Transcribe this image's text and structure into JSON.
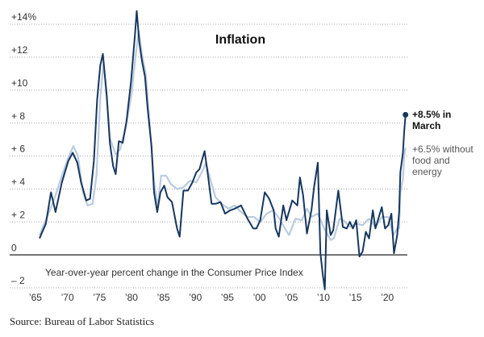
{
  "chart_data": {
    "type": "line",
    "title": "Inflation",
    "subtitle": "Year-over-year percent change in the Consumer Price Index",
    "source": "Source: Bureau of Labor Statistics",
    "annotations": [
      "+8.5% in March",
      "+6.5% without food and energy"
    ],
    "xlim": [
      1964.5,
      2023.5
    ],
    "ylim": [
      -2,
      14
    ],
    "grid": true,
    "xticks": [
      {
        "value": 1965,
        "label": "’65"
      },
      {
        "value": 1970,
        "label": "’70"
      },
      {
        "value": 1975,
        "label": "’75"
      },
      {
        "value": 1980,
        "label": "’80"
      },
      {
        "value": 1985,
        "label": "’85"
      },
      {
        "value": 1990,
        "label": "’90"
      },
      {
        "value": 1995,
        "label": "’95"
      },
      {
        "value": 2000,
        "label": "’00"
      },
      {
        "value": 2005,
        "label": "’05"
      },
      {
        "value": 2010,
        "label": "’10"
      },
      {
        "value": 2015,
        "label": "’15"
      },
      {
        "value": 2020,
        "label": "’20"
      }
    ],
    "yticks": [
      {
        "value": -2,
        "label": "– 2"
      },
      0,
      {
        "value": 2,
        "label": "+ 2"
      },
      {
        "value": 4,
        "label": "+ 4"
      },
      {
        "value": 6,
        "label": "+ 6"
      },
      {
        "value": 8,
        "label": "+ 8"
      },
      {
        "value": 10,
        "label": "+10"
      },
      {
        "value": 12,
        "label": "+12"
      },
      {
        "value": 14,
        "label": "+14%"
      }
    ],
    "series": [
      {
        "color": "#b9cbe0",
        "x": [
          1965,
          1966.5,
          1967.5,
          1968.5,
          1969.5,
          1970.3,
          1971,
          1971.8,
          1972.5,
          1973.3,
          1973.9,
          1974.5,
          1975,
          1975.5,
          1976,
          1976.9,
          1977.6,
          1978.5,
          1979.4,
          1980,
          1980.5,
          1981,
          1981.6,
          1982.2,
          1982.9,
          1983.5,
          1984,
          1984.8,
          1985.5,
          1986.5,
          1987.5,
          1988.5,
          1989.5,
          1990.5,
          1991,
          1991.9,
          1992.5,
          1993.5,
          1994.5,
          1995.5,
          1996.5,
          1997.5,
          1998.5,
          1999.5,
          2000.5,
          2001.5,
          2002.5,
          2003.5,
          2004,
          2005,
          2006,
          2006.8,
          2007.5,
          2008.5,
          2009.5,
          2010.5,
          2011,
          2011.9,
          2012.5,
          2013.5,
          2014.5,
          2015.5,
          2016.5,
          2017.5,
          2018.5,
          2019.5,
          2020.3,
          2020.9,
          2021.2,
          2021.4,
          2021.8,
          2022,
          2022.2
        ],
        "values": [
          1.2,
          2.6,
          3.6,
          4.8,
          5.9,
          6.6,
          6.0,
          3.8,
          3.0,
          3.1,
          4.8,
          9.5,
          11.7,
          9.5,
          7.1,
          6.1,
          6.4,
          7.8,
          9.8,
          12.0,
          13.6,
          12.2,
          11.0,
          8.0,
          4.4,
          2.9,
          4.8,
          4.8,
          4.3,
          4.0,
          4.1,
          4.5,
          4.4,
          5.1,
          5.6,
          4.3,
          3.5,
          3.1,
          2.8,
          3.0,
          2.6,
          2.3,
          2.3,
          2.0,
          2.5,
          2.7,
          2.2,
          1.5,
          1.2,
          2.2,
          2.1,
          2.8,
          2.3,
          2.5,
          1.6,
          0.9,
          1.0,
          2.2,
          2.1,
          1.7,
          1.9,
          1.8,
          2.2,
          1.7,
          2.3,
          2.3,
          1.2,
          1.6,
          1.6,
          3.8,
          4.6,
          6.0,
          6.5
        ]
      },
      {
        "color": "#17375e",
        "x": [
          1965,
          1966,
          1966.8,
          1967.5,
          1968.5,
          1969.5,
          1970.2,
          1970.9,
          1971.5,
          1972.3,
          1972.9,
          1973.5,
          1974,
          1974.5,
          1974.9,
          1975.5,
          1976,
          1976.5,
          1976.9,
          1977.4,
          1978,
          1978.6,
          1979.3,
          1979.9,
          1980.2,
          1980.6,
          1981,
          1981.5,
          1981.9,
          1982.5,
          1982.9,
          1983.4,
          1983.9,
          1984.5,
          1985,
          1985.7,
          1986.5,
          1986.9,
          1987.5,
          1988.2,
          1988.9,
          1989.5,
          1990,
          1990.8,
          1991.3,
          1991.9,
          1992.5,
          1993.3,
          1994,
          1994.8,
          1995.5,
          1996.5,
          1997.5,
          1998.4,
          1998.9,
          1999.5,
          2000.2,
          2000.9,
          2001.6,
          2001.9,
          2002.4,
          2003.1,
          2003.6,
          2004.5,
          2005.3,
          2005.7,
          2006.2,
          2006.8,
          2007.5,
          2007.9,
          2008.5,
          2008.9,
          2009.3,
          2009.6,
          2009.9,
          2010.5,
          2010.9,
          2011.7,
          2012.4,
          2013,
          2013.5,
          2014,
          2014.5,
          2015,
          2015.5,
          2016,
          2016.5,
          2017.1,
          2017.5,
          2018.5,
          2019,
          2019.5,
          2020,
          2020.4,
          2020.9,
          2021.2,
          2021.4,
          2021.8,
          2022,
          2022.2
        ],
        "values": [
          1.0,
          1.9,
          3.8,
          2.6,
          4.4,
          5.7,
          6.2,
          5.6,
          4.4,
          3.3,
          3.4,
          5.7,
          9.4,
          11.5,
          12.2,
          9.7,
          6.8,
          5.4,
          4.9,
          6.9,
          6.8,
          8.1,
          10.5,
          13.3,
          14.8,
          12.9,
          11.8,
          10.8,
          8.9,
          6.6,
          3.8,
          2.6,
          3.8,
          4.2,
          3.5,
          3.2,
          1.6,
          1.1,
          3.9,
          3.9,
          4.4,
          5.0,
          5.2,
          6.3,
          4.9,
          3.1,
          3.1,
          3.2,
          2.5,
          2.7,
          2.8,
          3.0,
          2.2,
          1.6,
          1.6,
          2.1,
          3.8,
          3.4,
          2.7,
          1.6,
          1.1,
          3.0,
          2.1,
          3.3,
          3.0,
          4.7,
          3.6,
          1.3,
          2.7,
          4.1,
          5.6,
          0.1,
          -1.3,
          -2.1,
          2.7,
          1.2,
          1.5,
          3.9,
          1.7,
          1.6,
          2.0,
          1.6,
          2.1,
          -0.1,
          0.2,
          1.4,
          1.0,
          2.7,
          1.6,
          2.9,
          1.6,
          1.8,
          2.5,
          0.1,
          1.2,
          2.6,
          5.0,
          6.2,
          7.5,
          8.5
        ]
      }
    ]
  }
}
